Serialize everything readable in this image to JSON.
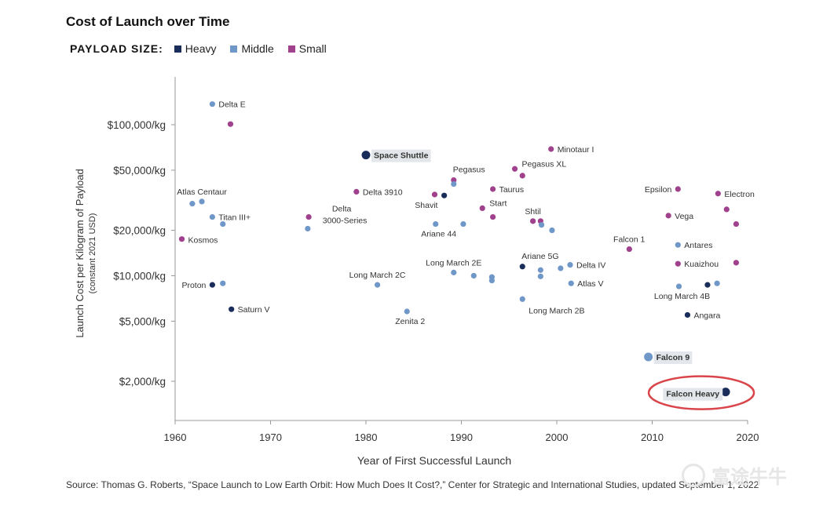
{
  "chart_data": {
    "type": "scatter",
    "title": "Cost of Launch over Time",
    "xlabel": "Year of First Successful Launch",
    "ylabel": "Launch Cost per Kilogram of Payload",
    "ylabel_sub": "(constant 2021 USD)",
    "xlim": [
      1960,
      2020
    ],
    "x_ticks": [
      1960,
      1970,
      1980,
      1990,
      2000,
      2010,
      2020
    ],
    "y_scale": "log",
    "ylim": [
      1400,
      200000
    ],
    "y_ticks": [
      {
        "value": 2000,
        "label": "$2,000/kg"
      },
      {
        "value": 5000,
        "label": "$5,000/kg"
      },
      {
        "value": 10000,
        "label": "$10,000/kg"
      },
      {
        "value": 20000,
        "label": "$20,000/kg"
      },
      {
        "value": 50000,
        "label": "$50,000/kg"
      },
      {
        "value": 100000,
        "label": "$100,000/kg"
      }
    ],
    "legend_title": "PAYLOAD SIZE:",
    "series": [
      {
        "name": "Heavy",
        "color": "#1a2d5a"
      },
      {
        "name": "Middle",
        "color": "#6f97c8"
      },
      {
        "name": "Small",
        "color": "#a0418d"
      }
    ],
    "points": [
      {
        "x": 1963.9,
        "y": 137000,
        "s": "Middle",
        "label": "Delta E",
        "pos": "right"
      },
      {
        "x": 1965.8,
        "y": 101000,
        "s": "Small",
        "label": "",
        "pos": "none"
      },
      {
        "x": 1961.8,
        "y": 30000,
        "s": "Middle",
        "label": "",
        "pos": "none"
      },
      {
        "x": 1962.8,
        "y": 31000,
        "s": "Middle",
        "label": "Atlas Centaur",
        "pos": "above"
      },
      {
        "x": 1963.9,
        "y": 24500,
        "s": "Middle",
        "label": "Titan III+",
        "pos": "right"
      },
      {
        "x": 1965.0,
        "y": 22000,
        "s": "Middle",
        "label": "",
        "pos": "none"
      },
      {
        "x": 1960.7,
        "y": 17500,
        "s": "Small",
        "label": "Kosmos",
        "pos": "right-below"
      },
      {
        "x": 1963.9,
        "y": 8700,
        "s": "Heavy",
        "label": "Proton",
        "pos": "left"
      },
      {
        "x": 1965.0,
        "y": 8900,
        "s": "Middle",
        "label": "",
        "pos": "none"
      },
      {
        "x": 1965.9,
        "y": 6000,
        "s": "Heavy",
        "label": "Saturn V",
        "pos": "right"
      },
      {
        "x": 1974.0,
        "y": 24500,
        "s": "Small",
        "label": "Delta 3000-Series",
        "pos": "delta3000"
      },
      {
        "x": 1973.9,
        "y": 20500,
        "s": "Middle",
        "label": "",
        "pos": "none"
      },
      {
        "x": 1979.0,
        "y": 36000,
        "s": "Small",
        "label": "Delta 3910",
        "pos": "right"
      },
      {
        "x": 1980.0,
        "y": 63000,
        "s": "Heavy",
        "label": "Space Shuttle",
        "pos": "highlight",
        "big": true
      },
      {
        "x": 1981.2,
        "y": 8700,
        "s": "Middle",
        "label": "Long March 2C",
        "pos": "above"
      },
      {
        "x": 1984.3,
        "y": 5800,
        "s": "Middle",
        "label": "Zenita 2",
        "pos": "below"
      },
      {
        "x": 1987.2,
        "y": 34500,
        "s": "Small",
        "label": "Shavit",
        "pos": "below-left"
      },
      {
        "x": 1988.2,
        "y": 34000,
        "s": "Heavy",
        "label": "",
        "pos": "none"
      },
      {
        "x": 1987.3,
        "y": 22000,
        "s": "Middle",
        "label": "Ariane 44",
        "pos": "below"
      },
      {
        "x": 1989.2,
        "y": 43000,
        "s": "Small",
        "label": "Pegasus",
        "pos": "above-right"
      },
      {
        "x": 1989.2,
        "y": 40500,
        "s": "Middle",
        "label": "",
        "pos": "none"
      },
      {
        "x": 1990.2,
        "y": 22000,
        "s": "Middle",
        "label": "",
        "pos": "none"
      },
      {
        "x": 1989.2,
        "y": 10500,
        "s": "Middle",
        "label": "Long March 2E",
        "pos": "above"
      },
      {
        "x": 1991.3,
        "y": 10000,
        "s": "Middle",
        "label": "",
        "pos": "none"
      },
      {
        "x": 1993.2,
        "y": 9800,
        "s": "Middle",
        "label": "",
        "pos": "none"
      },
      {
        "x": 1993.2,
        "y": 9300,
        "s": "Middle",
        "label": "",
        "pos": "none"
      },
      {
        "x": 1992.2,
        "y": 28000,
        "s": "Small",
        "label": "Start",
        "pos": "right-up"
      },
      {
        "x": 1993.3,
        "y": 24500,
        "s": "Small",
        "label": "",
        "pos": "none"
      },
      {
        "x": 1993.3,
        "y": 37500,
        "s": "Small",
        "label": "Taurus",
        "pos": "right"
      },
      {
        "x": 1995.6,
        "y": 51000,
        "s": "Small",
        "label": "Pegasus XL",
        "pos": "right-up"
      },
      {
        "x": 1996.4,
        "y": 46000,
        "s": "Small",
        "label": "",
        "pos": "none"
      },
      {
        "x": 1997.5,
        "y": 23000,
        "s": "Small",
        "label": "Shtil",
        "pos": "above"
      },
      {
        "x": 1998.3,
        "y": 23000,
        "s": "Small",
        "label": "",
        "pos": "none"
      },
      {
        "x": 1998.4,
        "y": 21700,
        "s": "Middle",
        "label": "",
        "pos": "none"
      },
      {
        "x": 1999.5,
        "y": 20000,
        "s": "Middle",
        "label": "",
        "pos": "none"
      },
      {
        "x": 1999.4,
        "y": 69000,
        "s": "Small",
        "label": "Minotaur I",
        "pos": "right"
      },
      {
        "x": 1996.4,
        "y": 11500,
        "s": "Heavy",
        "label": "Ariane 5G",
        "pos": "above-right"
      },
      {
        "x": 1998.3,
        "y": 10900,
        "s": "Middle",
        "label": "",
        "pos": "none"
      },
      {
        "x": 1998.3,
        "y": 9900,
        "s": "Middle",
        "label": "",
        "pos": "none"
      },
      {
        "x": 2000.4,
        "y": 11200,
        "s": "Middle",
        "label": "",
        "pos": "none"
      },
      {
        "x": 2001.4,
        "y": 11800,
        "s": "Middle",
        "label": "Delta IV",
        "pos": "right"
      },
      {
        "x": 2001.5,
        "y": 8900,
        "s": "Middle",
        "label": "Atlas V",
        "pos": "right"
      },
      {
        "x": 1996.4,
        "y": 7000,
        "s": "Middle",
        "label": "Long March 2B",
        "pos": "below-right"
      },
      {
        "x": 2007.6,
        "y": 15000,
        "s": "Small",
        "label": "Falcon 1",
        "pos": "above-left"
      },
      {
        "x": 2012.7,
        "y": 37500,
        "s": "Small",
        "label": "Epsilon",
        "pos": "left"
      },
      {
        "x": 2011.7,
        "y": 25000,
        "s": "Small",
        "label": "Vega",
        "pos": "right"
      },
      {
        "x": 2012.7,
        "y": 16000,
        "s": "Middle",
        "label": "Antares",
        "pos": "right"
      },
      {
        "x": 2012.7,
        "y": 12000,
        "s": "Small",
        "label": "Kuaizhou",
        "pos": "right"
      },
      {
        "x": 2012.8,
        "y": 8500,
        "s": "Middle",
        "label": "Long March 4B",
        "pos": "below"
      },
      {
        "x": 2015.8,
        "y": 8700,
        "s": "Heavy",
        "label": "",
        "pos": "none"
      },
      {
        "x": 2016.8,
        "y": 8900,
        "s": "Middle",
        "label": "",
        "pos": "none"
      },
      {
        "x": 2013.7,
        "y": 5500,
        "s": "Heavy",
        "label": "Angara",
        "pos": "right"
      },
      {
        "x": 2016.9,
        "y": 35000,
        "s": "Small",
        "label": "Electron",
        "pos": "right"
      },
      {
        "x": 2017.8,
        "y": 27500,
        "s": "Small",
        "label": "",
        "pos": "none"
      },
      {
        "x": 2018.8,
        "y": 22000,
        "s": "Small",
        "label": "",
        "pos": "none"
      },
      {
        "x": 2018.8,
        "y": 12200,
        "s": "Small",
        "label": "",
        "pos": "none"
      },
      {
        "x": 2009.6,
        "y": 2900,
        "s": "Middle",
        "label": "Falcon 9",
        "pos": "highlight",
        "big": true
      },
      {
        "x": 2017.7,
        "y": 1700,
        "s": "Heavy",
        "label": "Falcon Heavy",
        "pos": "highlight-left",
        "big": true,
        "circled": true
      }
    ]
  },
  "source_text": "Source: Thomas G. Roberts, “Space Launch to Low Earth Orbit: How Much Does It Cost?,” Center for Strategic and International Studies, updated September 1, 2022",
  "watermark_text": "富途牛牛"
}
